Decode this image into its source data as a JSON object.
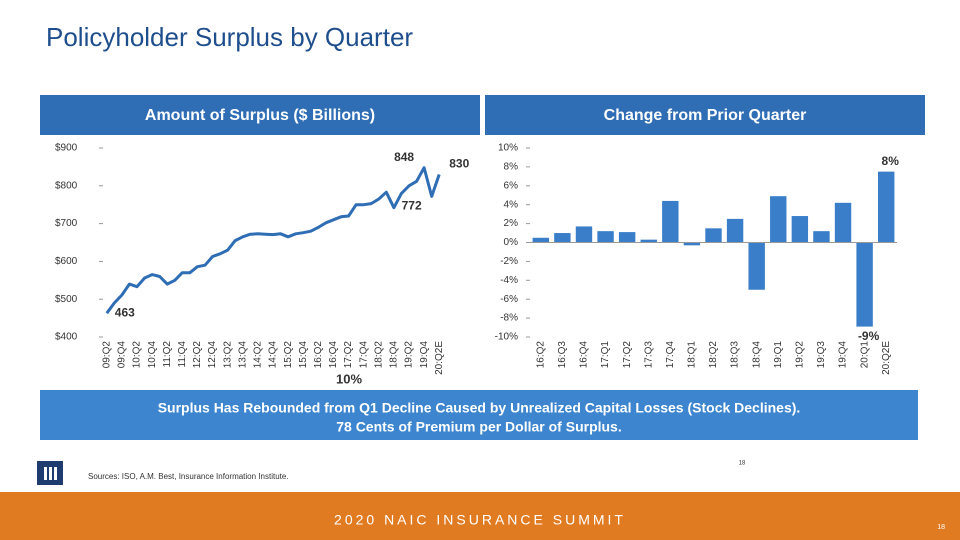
{
  "title": "Policyholder Surplus by Quarter",
  "banner": [
    "Surplus Has Rebounded from Q1 Decline Caused by Unrealized Capital Losses (Stock Declines).",
    "78 Cents of Premium per Dollar of Surplus."
  ],
  "overlay_label": "10%",
  "small_number": "18",
  "sources": "Sources: ISO, A.M. Best, Insurance Information Institute.",
  "footer": "2020 NAIC INSURANCE SUMMIT",
  "page_number": "18",
  "chart_data": [
    {
      "type": "line",
      "title": "Amount of Surplus ($ Billions)",
      "color": "#2f6db5",
      "categories": [
        "09:Q2",
        null,
        "09:Q4",
        null,
        "10:Q2",
        null,
        "10:Q4",
        null,
        "11:Q2",
        null,
        "11:Q4",
        null,
        "12:Q2",
        null,
        "12:Q4",
        null,
        "13:Q2",
        null,
        "13:Q4",
        null,
        "14:Q2",
        null,
        "14:Q4",
        null,
        "15:Q2",
        null,
        "15:Q4",
        null,
        "16:Q2",
        null,
        "16:Q4",
        null,
        "17:Q2",
        null,
        "17:Q4",
        null,
        "18:Q2",
        null,
        "18:Q4",
        null,
        "19:Q2",
        null,
        "19:Q4",
        null,
        "20:Q2E"
      ],
      "values": [
        463,
        490,
        511,
        540,
        533,
        556,
        565,
        560,
        540,
        550,
        570,
        570,
        586,
        590,
        613,
        620,
        630,
        655,
        665,
        672,
        673,
        672,
        671,
        673,
        665,
        673,
        676,
        680,
        690,
        702,
        710,
        718,
        720,
        750,
        750,
        753,
        765,
        783,
        742,
        780,
        800,
        812,
        848,
        772,
        830
      ],
      "value_labels": [
        "463",
        null,
        null,
        null,
        null,
        null,
        null,
        null,
        null,
        null,
        null,
        null,
        null,
        null,
        null,
        null,
        null,
        null,
        null,
        null,
        null,
        null,
        null,
        null,
        null,
        null,
        null,
        null,
        null,
        null,
        null,
        null,
        null,
        null,
        null,
        null,
        null,
        null,
        null,
        null,
        null,
        null,
        "848",
        "772",
        "830"
      ],
      "ylim": [
        400,
        900
      ],
      "yticks": [
        {
          "value": 900,
          "label": "$900"
        },
        {
          "value": 800,
          "label": "$800"
        },
        {
          "value": 700,
          "label": "$700"
        },
        {
          "value": 600,
          "label": "$600"
        },
        {
          "value": 500,
          "label": "$500"
        },
        {
          "value": 400,
          "label": "$400"
        }
      ]
    },
    {
      "type": "bar",
      "title": "Change from Prior Quarter",
      "color": "#3a7dc9",
      "categories": [
        "16:Q2",
        "16:Q3",
        "16:Q4",
        "17:Q1",
        "17:Q2",
        "17:Q3",
        "17:Q4",
        "18:Q1",
        "18:Q2",
        "18:Q3",
        "18:Q4",
        "19:Q1",
        "19:Q2",
        "19:Q3",
        "19:Q4",
        "20:Q1",
        "20:Q2E"
      ],
      "values": [
        0.5,
        1.0,
        1.7,
        1.2,
        1.1,
        0.3,
        4.4,
        -0.3,
        1.5,
        2.5,
        -5.0,
        4.9,
        2.8,
        1.2,
        4.2,
        -8.9,
        7.5
      ],
      "value_labels": [
        null,
        null,
        null,
        null,
        null,
        null,
        null,
        null,
        null,
        null,
        null,
        null,
        null,
        null,
        null,
        "-9%",
        "8%"
      ],
      "ylim": [
        -10,
        10
      ],
      "yticks": [
        {
          "value": 10,
          "label": "10%"
        },
        {
          "value": 8,
          "label": "8%"
        },
        {
          "value": 6,
          "label": "6%"
        },
        {
          "value": 4,
          "label": "4%"
        },
        {
          "value": 2,
          "label": "2%"
        },
        {
          "value": 0,
          "label": "0%"
        },
        {
          "value": -2,
          "label": "-2%"
        },
        {
          "value": -4,
          "label": "-4%"
        },
        {
          "value": -6,
          "label": "-6%"
        },
        {
          "value": -8,
          "label": "-8%"
        },
        {
          "value": -10,
          "label": "-10%"
        }
      ]
    }
  ]
}
